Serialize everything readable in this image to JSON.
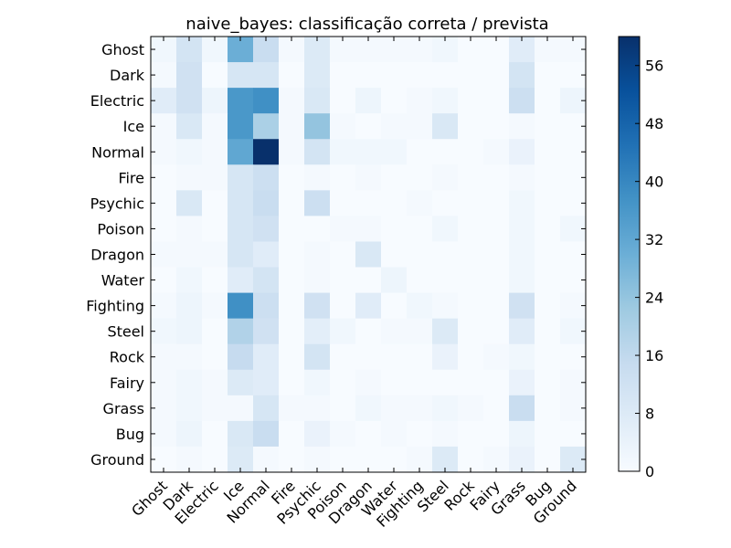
{
  "chart_data": {
    "type": "heatmap",
    "title": "naive_bayes: classificação correta / prevista",
    "xlabel": "",
    "ylabel": "",
    "rows": [
      "Ghost",
      "Dark",
      "Electric",
      "Ice",
      "Normal",
      "Fire",
      "Psychic",
      "Poison",
      "Dragon",
      "Water",
      "Fighting",
      "Steel",
      "Rock",
      "Fairy",
      "Grass",
      "Bug",
      "Ground"
    ],
    "cols": [
      "Ghost",
      "Dark",
      "Electric",
      "Ice",
      "Normal",
      "Fire",
      "Psychic",
      "Poison",
      "Dragon",
      "Water",
      "Fighting",
      "Steel",
      "Rock",
      "Fairy",
      "Grass",
      "Bug",
      "Ground"
    ],
    "values": [
      [
        2,
        11,
        2,
        30,
        14,
        1,
        8,
        1,
        1,
        1,
        1,
        2,
        0,
        0,
        7,
        1,
        1
      ],
      [
        1,
        12,
        0,
        10,
        10,
        0,
        8,
        0,
        0,
        0,
        0,
        0,
        0,
        0,
        11,
        0,
        0
      ],
      [
        7,
        12,
        3,
        36,
        38,
        1,
        9,
        0,
        3,
        0,
        1,
        2,
        0,
        0,
        13,
        0,
        3
      ],
      [
        1,
        9,
        1,
        36,
        20,
        1,
        24,
        1,
        0,
        1,
        1,
        9,
        0,
        0,
        1,
        0,
        0
      ],
      [
        1,
        2,
        1,
        32,
        60,
        1,
        11,
        2,
        2,
        2,
        0,
        0,
        0,
        1,
        4,
        0,
        0
      ],
      [
        0,
        1,
        1,
        10,
        13,
        0,
        1,
        0,
        1,
        0,
        0,
        1,
        0,
        0,
        1,
        0,
        0
      ],
      [
        0,
        9,
        0,
        10,
        14,
        0,
        13,
        0,
        0,
        0,
        1,
        0,
        0,
        0,
        2,
        0,
        0
      ],
      [
        0,
        1,
        0,
        10,
        12,
        0,
        0,
        1,
        1,
        0,
        0,
        2,
        0,
        0,
        2,
        0,
        2
      ],
      [
        1,
        1,
        1,
        10,
        7,
        0,
        1,
        0,
        9,
        0,
        0,
        0,
        0,
        0,
        2,
        0,
        0
      ],
      [
        0,
        2,
        0,
        7,
        11,
        0,
        1,
        0,
        0,
        3,
        0,
        0,
        0,
        0,
        2,
        0,
        0
      ],
      [
        1,
        3,
        1,
        38,
        13,
        0,
        12,
        0,
        7,
        0,
        2,
        1,
        0,
        0,
        12,
        0,
        1
      ],
      [
        2,
        3,
        0,
        19,
        12,
        0,
        6,
        2,
        0,
        1,
        1,
        8,
        0,
        0,
        7,
        0,
        2
      ],
      [
        1,
        1,
        0,
        15,
        7,
        0,
        11,
        0,
        0,
        0,
        0,
        4,
        0,
        1,
        2,
        0,
        0
      ],
      [
        1,
        2,
        1,
        8,
        7,
        0,
        2,
        0,
        1,
        0,
        0,
        0,
        0,
        0,
        4,
        0,
        1
      ],
      [
        1,
        2,
        1,
        1,
        10,
        1,
        1,
        0,
        2,
        1,
        1,
        2,
        1,
        0,
        14,
        0,
        1
      ],
      [
        1,
        3,
        0,
        9,
        14,
        0,
        4,
        1,
        0,
        1,
        0,
        1,
        0,
        0,
        3,
        0,
        0
      ],
      [
        0,
        1,
        0,
        8,
        1,
        0,
        1,
        0,
        0,
        0,
        1,
        8,
        0,
        1,
        4,
        0,
        8
      ]
    ],
    "colorbar": {
      "min": 0,
      "max": 60,
      "ticks": [
        0,
        8,
        16,
        24,
        32,
        40,
        48,
        56
      ]
    },
    "colormap": [
      "#f7fbff",
      "#deebf7",
      "#c6dbef",
      "#9ecae1",
      "#6baed6",
      "#4292c6",
      "#2171b5",
      "#08519c",
      "#08306b"
    ],
    "grid": false
  }
}
